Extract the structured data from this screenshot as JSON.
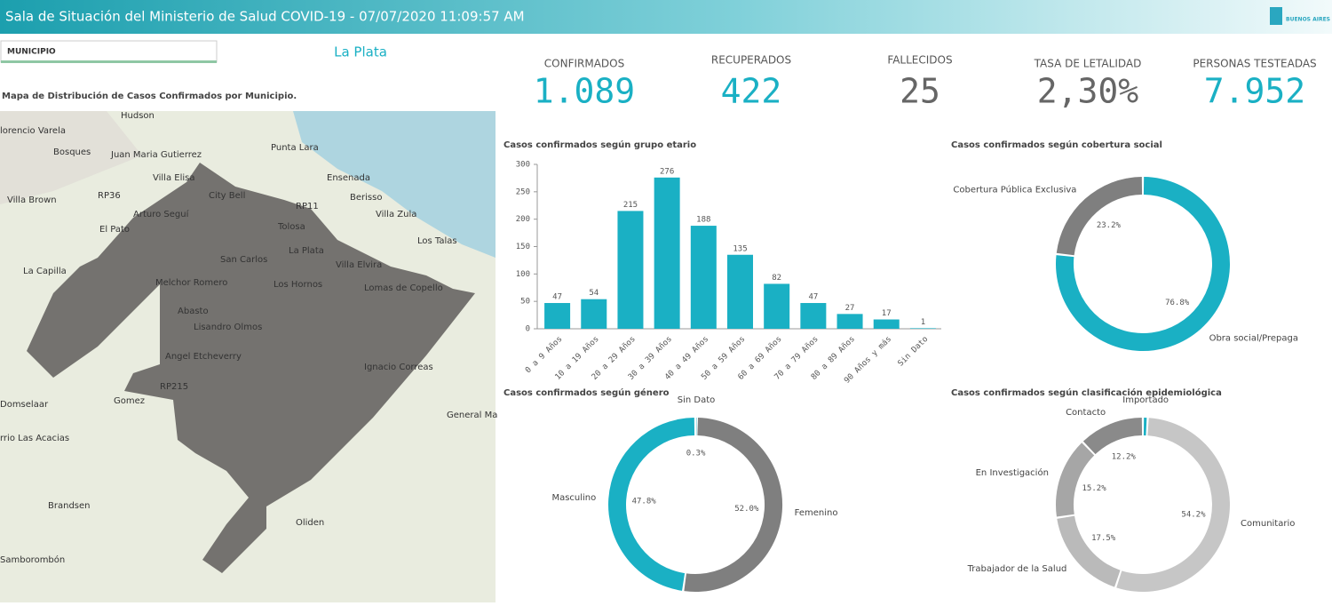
{
  "header": {
    "title": "Sala de Situación del Ministerio de Salud COVID-19 - 07/07/2020 11:09:57 AM",
    "logo": "BUENOS AIRES"
  },
  "filter": {
    "label": "MUNICIPIO",
    "selected": "La Plata"
  },
  "map": {
    "title": "Mapa de Distribución de Casos Confirmados por Municipio.",
    "places": [
      "Hudson",
      "lorencio Varela",
      "Bosques",
      "Juan Maria Gutierrez",
      "Punta Lara",
      "Villa Elisa",
      "City Bell",
      "Ensenada",
      "Berisso",
      "Villa Brown",
      "RP36",
      "RP11",
      "Arturo Seguí",
      "Villa Zula",
      "El Pato",
      "Tolosa",
      "Los Talas",
      "La Plata",
      "San Carlos",
      "La Capilla",
      "Villa Elvira",
      "Melchor Romero",
      "Los Hornos",
      "Lomas de Copello",
      "Abasto",
      "Lisandro Olmos",
      "Angel Etcheverry",
      "Ignacio Correas",
      "RP215",
      "Domselaar",
      "Gomez",
      "General Ma",
      "rrio Las Acacias",
      "Brandsen",
      "Oliden",
      "Samborombón"
    ]
  },
  "kpis": [
    {
      "label": "CONFIRMADOS",
      "value": "1.089"
    },
    {
      "label": "RECUPERADOS",
      "value": "422"
    },
    {
      "label": "FALLECIDOS",
      "value": "25"
    },
    {
      "label": "TASA DE LETALIDAD",
      "value": "2,30%"
    },
    {
      "label": "PERSONAS TESTEADAS",
      "value": "7.952"
    }
  ],
  "chart_data": [
    {
      "type": "bar",
      "title": "Casos confirmados según grupo etario",
      "categories": [
        "0 a 9 Años",
        "10 a 19 Años",
        "20 a 29 Años",
        "30 a 39 Años",
        "40 a 49 Años",
        "50 a 59 Años",
        "60 a 69 Años",
        "70 a 79 Años",
        "80 a 89 Años",
        "90 Años y más",
        "Sin Dato"
      ],
      "values": [
        47,
        54,
        215,
        276,
        188,
        135,
        82,
        47,
        27,
        17,
        1
      ],
      "color": "#1ab0c4",
      "ylim": [
        0,
        300
      ],
      "yticks": [
        0,
        50,
        100,
        150,
        200,
        250,
        300
      ]
    },
    {
      "type": "pie",
      "title": "Casos confirmados según cobertura social",
      "categories": [
        "Obra social/Prepaga",
        "Cobertura Pública Exclusiva"
      ],
      "values": [
        76.8,
        23.2
      ],
      "value_labels": [
        "76.8%",
        "23.2%"
      ],
      "colors": [
        "#1ab0c4",
        "#7f7f7f"
      ]
    },
    {
      "type": "pie",
      "title": "Casos confirmados según género",
      "categories": [
        "Sin Dato",
        "Femenino",
        "Masculino"
      ],
      "values": [
        0.3,
        52,
        47.8
      ],
      "value_labels": [
        "0.3%",
        "52.0%",
        "47.8%"
      ],
      "colors": [
        "#1ab0c4",
        "#7f7f7f",
        "#1ab0c4"
      ]
    },
    {
      "type": "pie",
      "title": "Casos confirmados según clasificación epidemiológica",
      "categories": [
        "Importado",
        "Comunitario",
        "Trabajador de la Salud",
        "En Investigación",
        "Contacto"
      ],
      "values": [
        0.9,
        54.2,
        17.5,
        15.2,
        12.2
      ],
      "value_labels": [
        null,
        "54.2%",
        "17.5%",
        "15.2%",
        "12.2%"
      ],
      "colors": [
        "#1ab0c4",
        "#c6c6c6",
        "#bababa",
        "#a6a6a6",
        "#8a8a8a"
      ]
    }
  ]
}
